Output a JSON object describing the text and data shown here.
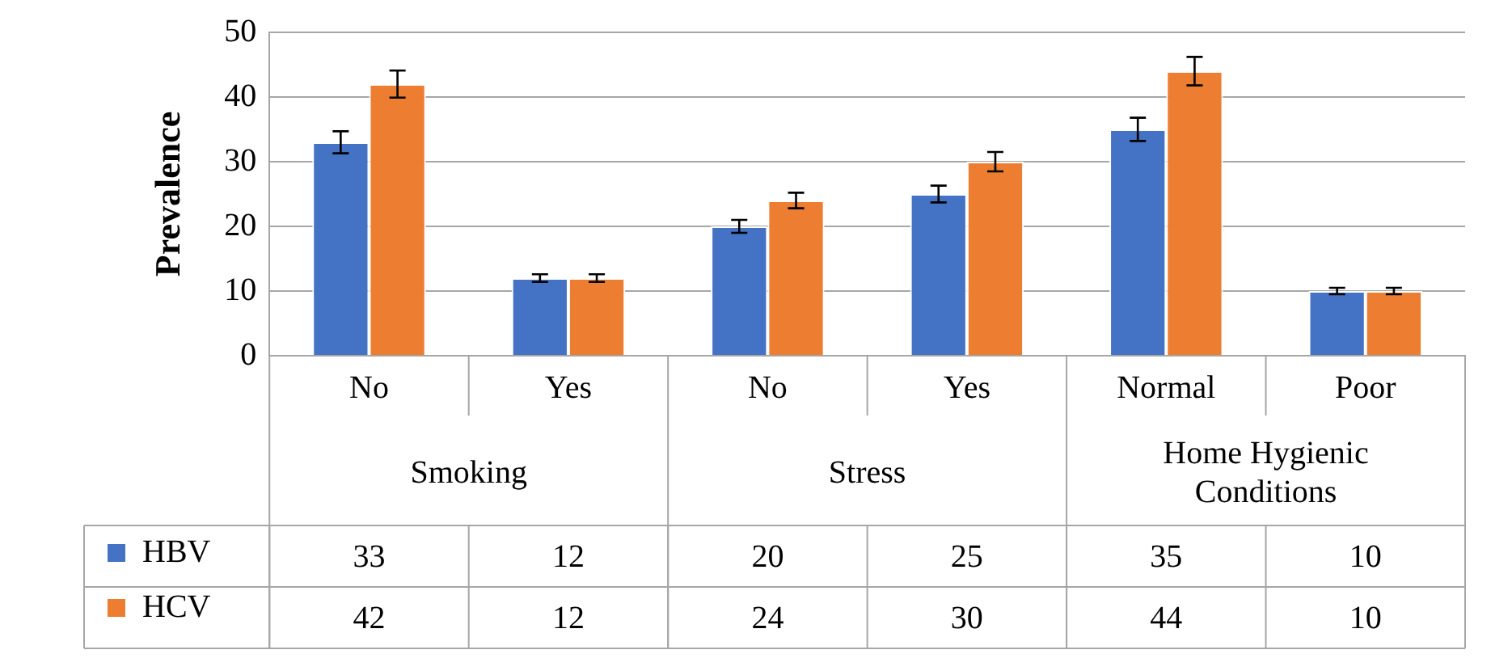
{
  "chart_data": {
    "type": "bar",
    "ylabel": "Prevalence",
    "categories": [
      "No",
      "Yes",
      "No",
      "Yes",
      "Normal",
      "Poor"
    ],
    "annotations": [
      "Smoking",
      "Stress",
      "Home Hygienic Conditions"
    ],
    "series": [
      {
        "name": "HBV",
        "color": "#4472c4",
        "values": [
          33,
          12,
          20,
          25,
          35,
          10
        ],
        "errors": [
          1.7,
          0.6,
          1,
          1.3,
          1.8,
          0.5
        ]
      },
      {
        "name": "HCV",
        "color": "#ed7d31",
        "values": [
          42,
          12,
          24,
          30,
          44,
          10
        ],
        "errors": [
          2.1,
          0.6,
          1.2,
          1.5,
          2.2,
          0.5
        ]
      }
    ],
    "ylim": [
      0,
      50
    ],
    "yticks": [
      0,
      10,
      20,
      30,
      40,
      50
    ],
    "grid": "y",
    "legend": "bottom",
    "data_labels": true
  }
}
